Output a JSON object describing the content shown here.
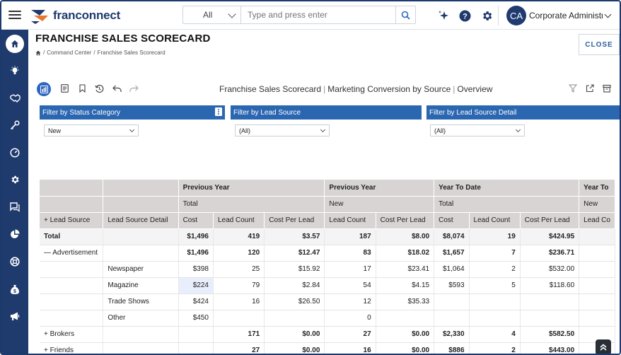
{
  "app": {
    "logo_text": "franconnect"
  },
  "search": {
    "category": "All",
    "placeholder": "Type and press enter"
  },
  "user": {
    "initials": "CA",
    "name": "Corporate Administrator"
  },
  "colors": {
    "navy": "#1f3a6d",
    "filter_blue": "#2b67b1",
    "accent": "#2f66c2"
  },
  "sidebar": {
    "items": [
      "home-icon",
      "lightbulb-icon",
      "handshake-icon",
      "key-icon",
      "gauge-icon",
      "gear-icon",
      "chat-icon",
      "pie-icon",
      "lifebuoy-icon",
      "money-bag-icon",
      "megaphone-icon"
    ]
  },
  "page": {
    "title": "FRANCHISE SALES SCORECARD",
    "breadcrumb": [
      "Command Center",
      "Franchise Sales Scorecard"
    ],
    "close_label": "CLOSE"
  },
  "report": {
    "title_parts": [
      "Franchise Sales Scorecard",
      "Marketing Conversion by Source",
      "Overview"
    ]
  },
  "filters": [
    {
      "label": "Filter by Status Category",
      "value": "New"
    },
    {
      "label": "Filter by Lead Source",
      "value": "(All)"
    },
    {
      "label": "Filter by Lead Source Detail",
      "value": "(All)"
    }
  ],
  "table": {
    "group_headers": [
      "Previous Year",
      "Previous Year",
      "Year To Date",
      "Year To"
    ],
    "sub_headers": [
      "Total",
      "New",
      "Total",
      "New"
    ],
    "col_headers": [
      "+ Lead Source",
      "Lead Source Detail",
      "Cost",
      "Lead Count",
      "Cost Per Lead",
      "Lead Count",
      "Cost Per Lead",
      "Cost",
      "Lead Count",
      "Cost Per Lead",
      "Lead Co"
    ],
    "rows": [
      {
        "type": "total",
        "cells": [
          "Total",
          "",
          "$1,496",
          "419",
          "$3.57",
          "187",
          "$8.00",
          "$8,074",
          "19",
          "$424.95",
          ""
        ]
      },
      {
        "type": "grp",
        "cells": [
          "— Advertisement",
          "",
          "$1,496",
          "120",
          "$12.47",
          "83",
          "$18.02",
          "$1,657",
          "7",
          "$236.71",
          ""
        ]
      },
      {
        "type": "detail",
        "cells": [
          "",
          "Newspaper",
          "$398",
          "25",
          "$15.92",
          "17",
          "$23.41",
          "$1,064",
          "2",
          "$532.00",
          ""
        ]
      },
      {
        "type": "detail",
        "cells": [
          "",
          "Magazine",
          "$224",
          "79",
          "$2.84",
          "54",
          "$4.15",
          "$593",
          "5",
          "$118.60",
          ""
        ]
      },
      {
        "type": "detail",
        "cells": [
          "",
          "Trade Shows",
          "$424",
          "16",
          "$26.50",
          "12",
          "$35.33",
          "",
          "",
          "",
          ""
        ]
      },
      {
        "type": "detail",
        "cells": [
          "",
          "Other",
          "$450",
          "",
          "",
          "0",
          "",
          "",
          "",
          "",
          ""
        ]
      },
      {
        "type": "grp",
        "cells": [
          "+ Brokers",
          "",
          "",
          "171",
          "$0.00",
          "27",
          "$0.00",
          "$2,330",
          "4",
          "$582.50",
          ""
        ]
      },
      {
        "type": "grp",
        "cells": [
          "+ Friends",
          "",
          "",
          "27",
          "$0.00",
          "16",
          "$0.00",
          "$886",
          "2",
          "$443.00",
          ""
        ]
      }
    ]
  }
}
